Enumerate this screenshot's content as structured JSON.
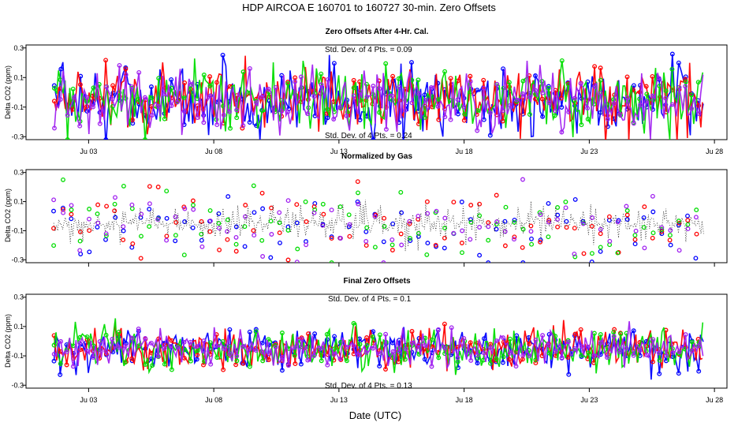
{
  "title": "HDP   AIRCOA E   160701 to 160727   30-min. Zero Offsets",
  "xlabel": "Date (UTC)",
  "colors": {
    "blue": "#0000ff",
    "red": "#ff0000",
    "green": "#00dd00",
    "purple": "#a020f0",
    "black": "#000000"
  },
  "chart_data": [
    {
      "type": "line",
      "title": "Zero Offsets After 4-Hr. Cal.",
      "ylabel": "Delta CO2 (ppm)",
      "ylim": [
        -0.32,
        0.32
      ],
      "yticks": [
        -0.3,
        -0.1,
        0.1,
        0.3
      ],
      "ytick_labels": [
        "-0.3",
        "-0.1",
        "0.1",
        "0.3"
      ],
      "xlim": [
        0.5,
        28.5
      ],
      "xticks": [
        3,
        8,
        13,
        18,
        23,
        28
      ],
      "xtick_labels": [
        "Ju 03",
        "Ju 08",
        "Ju 13",
        "Ju 18",
        "Ju 23",
        "Ju 28"
      ],
      "annotation_top": "Std. Dev. of 4 Pts. = 0.09",
      "annotation_bottom": "Std. Dev. of 4 Pts. = 0.24",
      "series": [
        {
          "name": "gas-blue",
          "color": "blue",
          "style": "line+points",
          "spread": 0.16
        },
        {
          "name": "gas-red",
          "color": "red",
          "style": "line+points",
          "spread": 0.16
        },
        {
          "name": "gas-green",
          "color": "green",
          "style": "line+points",
          "spread": 0.16
        },
        {
          "name": "gas-purple",
          "color": "purple",
          "style": "line+points",
          "spread": 0.14
        }
      ],
      "x_range": [
        1.6,
        27.6
      ]
    },
    {
      "type": "scatter",
      "title": "Normalized by Gas",
      "ylabel": "Delta CO2 (ppm)",
      "ylim": [
        -0.32,
        0.32
      ],
      "yticks": [
        -0.3,
        -0.1,
        0.1,
        0.3
      ],
      "ytick_labels": [
        "-0.3",
        "-0.1",
        "0.1",
        "0.3"
      ],
      "xlim": [
        0.5,
        28.5
      ],
      "xticks": [
        3,
        8,
        13,
        18,
        23,
        28
      ],
      "series": [
        {
          "name": "gas-blue",
          "color": "blue",
          "style": "points",
          "spread": 0.18
        },
        {
          "name": "gas-red",
          "color": "red",
          "style": "points",
          "spread": 0.18
        },
        {
          "name": "gas-green",
          "color": "green",
          "style": "points",
          "spread": 0.18
        },
        {
          "name": "gas-purple",
          "color": "purple",
          "style": "points",
          "spread": 0.18
        },
        {
          "name": "normalized",
          "color": "black",
          "style": "dotted",
          "spread": 0.1
        }
      ],
      "x_range": [
        1.6,
        27.6
      ]
    },
    {
      "type": "line",
      "title": "Final Zero Offsets",
      "ylabel": "Delta CO2 (ppm)",
      "ylim": [
        -0.32,
        0.32
      ],
      "yticks": [
        -0.3,
        -0.1,
        0.1,
        0.3
      ],
      "ytick_labels": [
        "-0.3",
        "-0.1",
        "0.1",
        "0.3"
      ],
      "xlim": [
        0.5,
        28.5
      ],
      "xticks": [
        3,
        8,
        13,
        18,
        23,
        28
      ],
      "xtick_labels": [
        "Ju 03",
        "Ju 08",
        "Ju 13",
        "Ju 18",
        "Ju 23",
        "Ju 28"
      ],
      "annotation_top": "Std. Dev. of 4 Pts. = 0.1",
      "annotation_bottom": "Std. Dev. of 4 Pts. = 0.13",
      "series": [
        {
          "name": "gas-blue",
          "color": "blue",
          "style": "line+points",
          "spread": 0.1
        },
        {
          "name": "gas-red",
          "color": "red",
          "style": "line+points",
          "spread": 0.1
        },
        {
          "name": "gas-green",
          "color": "green",
          "style": "line+points",
          "spread": 0.1
        },
        {
          "name": "gas-purple",
          "color": "purple",
          "style": "line+points",
          "spread": 0.09
        }
      ],
      "x_range": [
        1.6,
        27.6
      ]
    }
  ]
}
